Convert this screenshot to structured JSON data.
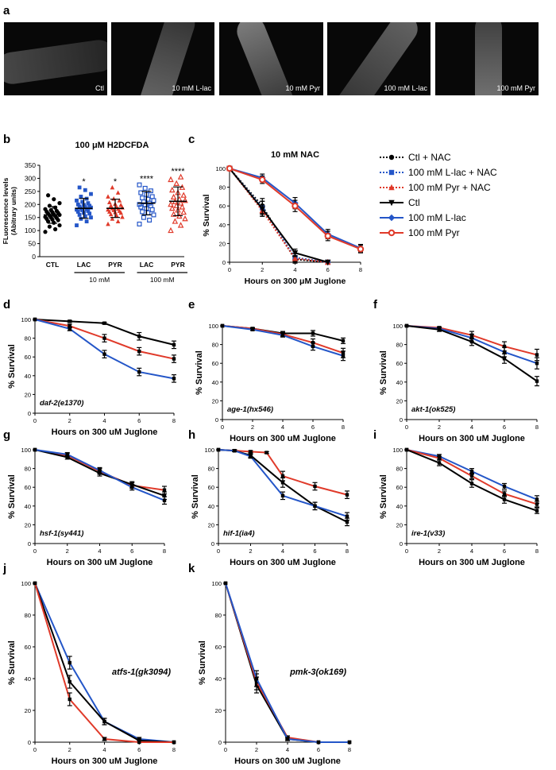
{
  "panel_letters": [
    "a",
    "b",
    "c",
    "d",
    "e",
    "f",
    "g",
    "h",
    "i",
    "j",
    "k"
  ],
  "panel_a": {
    "captions": [
      "Ctl",
      "10 mM L-lac",
      "10 mM Pyr",
      "100 mM L-lac",
      "100 mM Pyr"
    ]
  },
  "colors": {
    "ctl": "#000000",
    "lac": "#2456c8",
    "pyr": "#e03a2a"
  },
  "legend": {
    "items": [
      "Ctl + NAC",
      "100 mM L-lac + NAC",
      "100 mM Pyr + NAC",
      "Ctl",
      "100 mM L-lac",
      "100 mM Pyr"
    ]
  },
  "chart_data": [
    {
      "panel": "b",
      "type": "scatter",
      "title": "100 μM H2DCFDA",
      "ylabel_line1": "FLuorescence levels",
      "ylabel_line2": "(Abitrary units)",
      "ylim": [
        0,
        350
      ],
      "yticks": [
        "0",
        "50",
        "100",
        "150",
        "200",
        "250",
        "300",
        "350"
      ],
      "categories": [
        "CTL",
        "LAC",
        "PYR",
        "LAC",
        "PYR"
      ],
      "group_labels": [
        "10 mM",
        "100 mM"
      ],
      "significance": [
        "",
        "*",
        "*",
        "****",
        "****"
      ],
      "means": [
        160,
        185,
        185,
        205,
        212
      ],
      "sds": [
        32,
        38,
        35,
        45,
        55
      ],
      "points": [
        [
          95,
          105,
          115,
          120,
          130,
          135,
          140,
          142,
          145,
          148,
          150,
          152,
          155,
          158,
          160,
          162,
          165,
          168,
          170,
          172,
          175,
          178,
          182,
          188,
          195,
          205,
          220,
          235
        ],
        [
          120,
          135,
          145,
          150,
          155,
          160,
          165,
          168,
          172,
          175,
          178,
          180,
          182,
          185,
          188,
          190,
          192,
          195,
          198,
          200,
          205,
          210,
          215,
          222,
          230,
          240,
          255,
          265
        ],
        [
          125,
          135,
          145,
          152,
          158,
          162,
          168,
          170,
          172,
          175,
          178,
          180,
          183,
          185,
          188,
          190,
          195,
          198,
          202,
          208,
          215,
          222,
          230,
          245,
          265
        ],
        [
          125,
          140,
          150,
          160,
          168,
          172,
          180,
          185,
          190,
          195,
          198,
          200,
          205,
          210,
          215,
          220,
          225,
          230,
          238,
          245,
          252,
          262,
          275
        ],
        [
          100,
          120,
          135,
          145,
          155,
          162,
          170,
          178,
          185,
          190,
          195,
          200,
          205,
          210,
          215,
          220,
          228,
          235,
          245,
          255,
          265,
          280,
          295,
          305
        ]
      ]
    },
    {
      "panel": "c",
      "type": "line",
      "title": "10 mM NAC",
      "xlabel": "Hours on 300 μM Juglone",
      "ylabel": "% Survival",
      "xlim": [
        0,
        8
      ],
      "ylim": [
        0,
        100
      ],
      "xticks": [
        "0",
        "2",
        "4",
        "6",
        "8"
      ],
      "yticks": [
        "0",
        "20",
        "40",
        "60",
        "80",
        "100"
      ],
      "series": [
        {
          "name": "Ctl + NAC",
          "color": "ctl",
          "dash": "dot",
          "marker": "circle",
          "x": [
            0,
            2,
            4,
            6
          ],
          "y": [
            100,
            60,
            3,
            0
          ],
          "err": [
            0,
            8,
            4,
            0
          ]
        },
        {
          "name": "100 mM L-lac + NAC",
          "color": "lac",
          "dash": "dot",
          "marker": "square",
          "x": [
            0,
            2,
            4,
            6
          ],
          "y": [
            100,
            58,
            5,
            0
          ],
          "err": [
            0,
            7,
            4,
            0
          ]
        },
        {
          "name": "100 mM Pyr + NAC",
          "color": "pyr",
          "dash": "dot",
          "marker": "triangle",
          "x": [
            0,
            2,
            4,
            6
          ],
          "y": [
            100,
            55,
            4,
            0
          ],
          "err": [
            0,
            6,
            3,
            0
          ]
        },
        {
          "name": "Ctl",
          "color": "ctl",
          "dash": "",
          "marker": "triangle-down",
          "x": [
            0,
            2,
            4,
            6
          ],
          "y": [
            100,
            57,
            10,
            0
          ],
          "err": [
            0,
            8,
            4,
            0
          ]
        },
        {
          "name": "100 mM L-lac",
          "color": "lac",
          "dash": "",
          "marker": "diamond",
          "x": [
            0,
            2,
            4,
            6,
            8
          ],
          "y": [
            100,
            90,
            63,
            30,
            15
          ],
          "err": [
            0,
            4,
            6,
            5,
            4
          ]
        },
        {
          "name": "100 mM Pyr",
          "color": "pyr",
          "dash": "",
          "marker": "open-circle",
          "x": [
            0,
            2,
            4,
            6,
            8
          ],
          "y": [
            100,
            88,
            60,
            28,
            14
          ],
          "err": [
            0,
            4,
            6,
            5,
            4
          ]
        }
      ]
    },
    {
      "panel": "d",
      "type": "line",
      "strain": "daf-2(e1370)",
      "xlabel": "Hours on 300 uM Juglone",
      "ylabel": "% Survival",
      "xlim": [
        0,
        8
      ],
      "ylim": [
        0,
        100
      ],
      "xticks": [
        "0",
        "2",
        "4",
        "6",
        "8"
      ],
      "yticks": [
        "0",
        "20",
        "40",
        "60",
        "80",
        "100"
      ],
      "series": [
        {
          "color": "ctl",
          "x": [
            0,
            2,
            4,
            6,
            8
          ],
          "y": [
            100,
            98,
            96,
            82,
            73
          ],
          "err": [
            0,
            1,
            1,
            4,
            4
          ]
        },
        {
          "color": "pyr",
          "x": [
            0,
            2,
            4,
            6,
            8
          ],
          "y": [
            100,
            93,
            80,
            66,
            58
          ],
          "err": [
            0,
            2,
            4,
            4,
            4
          ]
        },
        {
          "color": "lac",
          "x": [
            0,
            2,
            4,
            6,
            8
          ],
          "y": [
            100,
            90,
            63,
            44,
            37
          ],
          "err": [
            0,
            2,
            4,
            4,
            4
          ]
        }
      ]
    },
    {
      "panel": "e",
      "type": "line",
      "strain": "age-1(hx546)",
      "xlabel": "Hours on 300 uM Juglone",
      "ylabel": "% Survival",
      "xlim": [
        0,
        8
      ],
      "ylim": [
        0,
        100
      ],
      "xticks": [
        "0",
        "2",
        "4",
        "6",
        "8"
      ],
      "yticks": [
        "0",
        "20",
        "40",
        "60",
        "80",
        "100"
      ],
      "series": [
        {
          "color": "ctl",
          "x": [
            0,
            2,
            4,
            6,
            8
          ],
          "y": [
            100,
            97,
            92,
            92,
            84
          ],
          "err": [
            0,
            1,
            2,
            3,
            3
          ]
        },
        {
          "color": "pyr",
          "x": [
            0,
            2,
            4,
            6,
            8
          ],
          "y": [
            100,
            97,
            91,
            82,
            71
          ],
          "err": [
            0,
            1,
            2,
            4,
            5
          ]
        },
        {
          "color": "lac",
          "x": [
            0,
            2,
            4,
            6,
            8
          ],
          "y": [
            100,
            96,
            90,
            78,
            68
          ],
          "err": [
            0,
            1,
            2,
            4,
            5
          ]
        }
      ]
    },
    {
      "panel": "f",
      "type": "line",
      "strain": "akt-1(ok525)",
      "xlabel": "Hours on 300 uM Juglone",
      "ylabel": "% Survival",
      "xlim": [
        0,
        8
      ],
      "ylim": [
        0,
        100
      ],
      "xticks": [
        "0",
        "2",
        "4",
        "6",
        "8"
      ],
      "yticks": [
        "0",
        "20",
        "40",
        "60",
        "80",
        "100"
      ],
      "series": [
        {
          "color": "pyr",
          "x": [
            0,
            2,
            4,
            6,
            8
          ],
          "y": [
            100,
            98,
            90,
            78,
            69
          ],
          "err": [
            0,
            1,
            4,
            5,
            6
          ]
        },
        {
          "color": "lac",
          "x": [
            0,
            2,
            4,
            6,
            8
          ],
          "y": [
            100,
            97,
            87,
            72,
            60
          ],
          "err": [
            0,
            1,
            4,
            5,
            6
          ]
        },
        {
          "color": "ctl",
          "x": [
            0,
            2,
            4,
            6,
            8
          ],
          "y": [
            100,
            96,
            83,
            65,
            41
          ],
          "err": [
            0,
            2,
            4,
            5,
            5
          ]
        }
      ]
    },
    {
      "panel": "g",
      "type": "line",
      "strain": "hsf-1(sy441)",
      "xlabel": "Hours on 300 uM Juglone",
      "ylabel": "% Survival",
      "xlim": [
        0,
        8
      ],
      "ylim": [
        0,
        100
      ],
      "xticks": [
        "0",
        "2",
        "4",
        "6",
        "8"
      ],
      "yticks": [
        "0",
        "20",
        "40",
        "60",
        "80",
        "100"
      ],
      "series": [
        {
          "color": "pyr",
          "x": [
            0,
            2,
            4,
            6,
            8
          ],
          "y": [
            100,
            94,
            77,
            62,
            57
          ],
          "err": [
            0,
            2,
            3,
            3,
            4
          ]
        },
        {
          "color": "ctl",
          "x": [
            0,
            2,
            4,
            6,
            8
          ],
          "y": [
            100,
            92,
            75,
            63,
            51
          ],
          "err": [
            0,
            2,
            3,
            3,
            4
          ]
        },
        {
          "color": "lac",
          "x": [
            0,
            2,
            4,
            6,
            8
          ],
          "y": [
            100,
            95,
            78,
            60,
            46
          ],
          "err": [
            0,
            2,
            3,
            3,
            4
          ]
        }
      ]
    },
    {
      "panel": "h",
      "type": "line",
      "strain": "hif-1(ia4)",
      "xlabel": "Hours on 300 uM Juglone",
      "ylabel": "% Survival",
      "xlim": [
        0,
        8
      ],
      "ylim": [
        0,
        100
      ],
      "xticks": [
        "0",
        "2",
        "4",
        "6",
        "8"
      ],
      "yticks": [
        "0",
        "20",
        "40",
        "60",
        "80",
        "100"
      ],
      "series": [
        {
          "color": "pyr",
          "x": [
            0,
            1,
            2,
            3,
            4,
            6,
            8
          ],
          "y": [
            100,
            99,
            98,
            97,
            72,
            61,
            52
          ],
          "err": [
            0,
            1,
            1,
            1,
            5,
            4,
            4
          ]
        },
        {
          "color": "ctl",
          "x": [
            0,
            1,
            2,
            4,
            6,
            8
          ],
          "y": [
            100,
            99,
            94,
            65,
            40,
            23
          ],
          "err": [
            0,
            1,
            2,
            5,
            4,
            4
          ]
        },
        {
          "color": "lac",
          "x": [
            0,
            1,
            2,
            4,
            6,
            8
          ],
          "y": [
            100,
            99,
            93,
            51,
            40,
            29
          ],
          "err": [
            0,
            1,
            2,
            4,
            4,
            4
          ]
        }
      ]
    },
    {
      "panel": "i",
      "type": "line",
      "strain": "ire-1(v33)",
      "xlabel": "Hours on 300 uM Juglone",
      "ylabel": "% Survival",
      "xlim": [
        0,
        8
      ],
      "ylim": [
        0,
        100
      ],
      "xticks": [
        "0",
        "2",
        "4",
        "6",
        "8"
      ],
      "yticks": [
        "0",
        "20",
        "40",
        "60",
        "80",
        "100"
      ],
      "series": [
        {
          "color": "lac",
          "x": [
            0,
            2,
            4,
            6,
            8
          ],
          "y": [
            100,
            93,
            77,
            61,
            47
          ],
          "err": [
            0,
            2,
            3,
            3,
            4
          ]
        },
        {
          "color": "pyr",
          "x": [
            0,
            2,
            4,
            6,
            8
          ],
          "y": [
            100,
            91,
            72,
            53,
            42
          ],
          "err": [
            0,
            2,
            3,
            3,
            3
          ]
        },
        {
          "color": "ctl",
          "x": [
            0,
            2,
            4,
            6,
            8
          ],
          "y": [
            100,
            86,
            64,
            47,
            35
          ],
          "err": [
            0,
            3,
            4,
            4,
            3
          ]
        }
      ]
    },
    {
      "panel": "j",
      "type": "line",
      "strain": "atfs-1(gk3094)",
      "xlabel": "Hours on 300 uM Juglone",
      "ylabel": "% Survival",
      "xlim": [
        0,
        8
      ],
      "ylim": [
        0,
        100
      ],
      "xticks": [
        "0",
        "2",
        "4",
        "6",
        "8"
      ],
      "yticks": [
        "0",
        "20",
        "40",
        "60",
        "80",
        "100"
      ],
      "series": [
        {
          "color": "lac",
          "x": [
            0,
            2,
            4,
            6,
            8
          ],
          "y": [
            100,
            50,
            13,
            2,
            0
          ],
          "err": [
            0,
            4,
            2,
            1,
            0
          ]
        },
        {
          "color": "ctl",
          "x": [
            0,
            2,
            4,
            6,
            8
          ],
          "y": [
            100,
            38,
            13,
            1,
            0
          ],
          "err": [
            0,
            4,
            2,
            1,
            0
          ]
        },
        {
          "color": "pyr",
          "x": [
            0,
            2,
            4,
            6,
            8
          ],
          "y": [
            100,
            27,
            2,
            0,
            0
          ],
          "err": [
            0,
            4,
            1,
            0,
            0
          ]
        }
      ]
    },
    {
      "panel": "k",
      "type": "line",
      "strain": "pmk-3(ok169)",
      "xlabel": "Hours on 300 uM Juglone",
      "ylabel": "% Survival",
      "xlim": [
        0,
        8
      ],
      "ylim": [
        0,
        100
      ],
      "xticks": [
        "0",
        "2",
        "4",
        "6",
        "8"
      ],
      "yticks": [
        "0",
        "20",
        "40",
        "60",
        "80",
        "100"
      ],
      "series": [
        {
          "color": "ctl",
          "x": [
            0,
            2,
            4,
            6,
            8
          ],
          "y": [
            100,
            36,
            2,
            0,
            0
          ],
          "err": [
            0,
            5,
            1,
            0,
            0
          ]
        },
        {
          "color": "pyr",
          "x": [
            0,
            2,
            4,
            6,
            8
          ],
          "y": [
            100,
            38,
            3,
            0,
            0
          ],
          "err": [
            0,
            5,
            1,
            0,
            0
          ]
        },
        {
          "color": "lac",
          "x": [
            0,
            2,
            4,
            6,
            8
          ],
          "y": [
            100,
            40,
            2,
            0,
            0
          ],
          "err": [
            0,
            5,
            1,
            0,
            0
          ]
        }
      ]
    }
  ]
}
